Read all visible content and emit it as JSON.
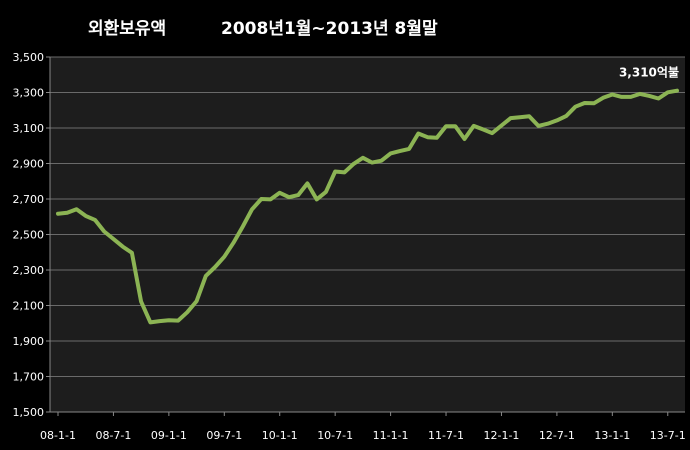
{
  "chart_data": {
    "type": "line",
    "title_part1": "외환보유액",
    "title_part2": "2008년1월~2013년 8월말",
    "xlabel": "",
    "ylabel": "",
    "ylim": [
      1500,
      3500
    ],
    "y_ticks": [
      "1,500",
      "1,700",
      "1,900",
      "2,100",
      "2,300",
      "2,500",
      "2,700",
      "2,900",
      "3,100",
      "3,300",
      "3,500"
    ],
    "x_tick_labels": [
      "08-1-1",
      "08-7-1",
      "09-1-1",
      "09-7-1",
      "10-1-1",
      "10-7-1",
      "11-1-1",
      "11-7-1",
      "12-1-1",
      "12-7-1",
      "13-1-1",
      "13-7-1"
    ],
    "grid": true,
    "line_color": "#8cb454",
    "plot_bg": "#1d1d1d",
    "end_annotation": "3,310억불",
    "series": [
      {
        "values": [
          2617,
          2622,
          2642,
          2605,
          2582,
          2517,
          2475,
          2432,
          2397,
          2122,
          2005,
          2012,
          2017,
          2015,
          2062,
          2125,
          2267,
          2317,
          2375,
          2454,
          2545,
          2642,
          2700,
          2698,
          2735,
          2710,
          2722,
          2788,
          2698,
          2740,
          2855,
          2850,
          2898,
          2932,
          2905,
          2916,
          2957,
          2970,
          2982,
          3069,
          3048,
          3045,
          3110,
          3110,
          3038,
          3112,
          3092,
          3071,
          3114,
          3156,
          3161,
          3166,
          3112,
          3124,
          3143,
          3167,
          3220,
          3241,
          3239,
          3270,
          3289,
          3275,
          3275,
          3292,
          3281,
          3266,
          3301,
          3310
        ]
      }
    ]
  }
}
